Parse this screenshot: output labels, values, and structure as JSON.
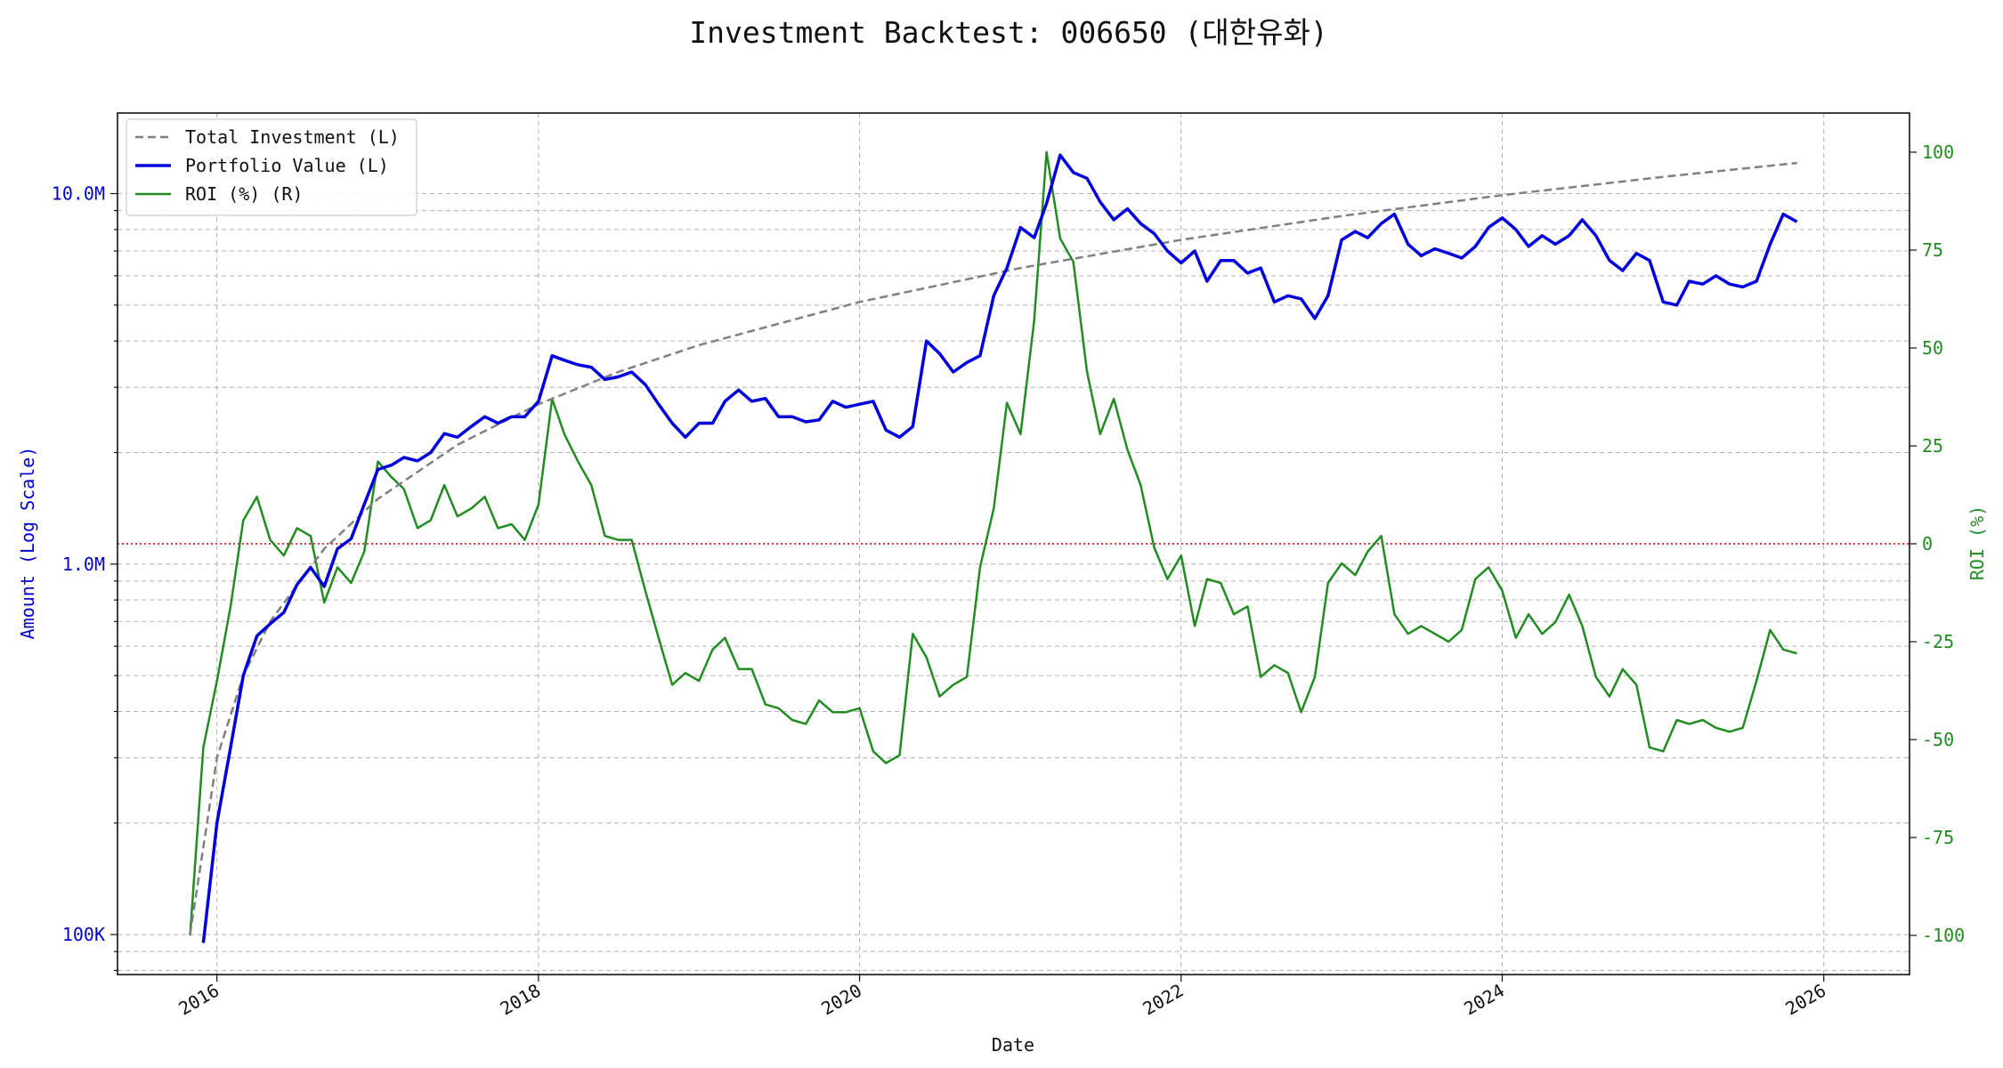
{
  "chart_data": {
    "type": "line",
    "title": "Investment Backtest: 006650 (대한유화)",
    "xlabel": "Date",
    "ylabel_left": "Amount (Log Scale)",
    "ylabel_right": "ROI (%)",
    "left_axis": {
      "scale": "log",
      "ylim": [
        78000,
        16500000
      ],
      "ticks": [
        {
          "value": 100000,
          "label": "100K"
        },
        {
          "value": 1000000,
          "label": "1.0M"
        },
        {
          "value": 10000000,
          "label": "10.0M"
        }
      ]
    },
    "right_axis": {
      "scale": "linear",
      "ylim": [
        -110,
        110
      ],
      "ticks": [
        -100,
        -75,
        -50,
        -25,
        0,
        25,
        50,
        75,
        100
      ]
    },
    "x_axis": {
      "range": [
        "2015-05-20",
        "2026-07-15"
      ],
      "ticks": [
        {
          "date": "2016-01-01",
          "label": "2016"
        },
        {
          "date": "2018-01-01",
          "label": "2018"
        },
        {
          "date": "2020-01-01",
          "label": "2020"
        },
        {
          "date": "2022-01-01",
          "label": "2022"
        },
        {
          "date": "2024-01-01",
          "label": "2024"
        },
        {
          "date": "2026-01-01",
          "label": "2026"
        }
      ]
    },
    "grid": true,
    "legend_position": "top-left",
    "reference_line": {
      "axis": "right",
      "value": 0,
      "color": "#cc0000",
      "style": "dotted"
    },
    "series": [
      {
        "name": "Total Investment (L)",
        "axis": "left",
        "color": "#808080",
        "style": "dashed",
        "stroke_width": 2.5,
        "x": [
          "2015-11-01",
          "2016-01-01",
          "2016-03-01",
          "2016-05-01",
          "2016-09-01",
          "2017-01-01",
          "2017-07-01",
          "2018-01-01",
          "2018-07-01",
          "2019-01-01",
          "2020-01-01",
          "2021-01-01",
          "2022-01-01",
          "2023-01-01",
          "2024-01-01",
          "2025-01-01",
          "2025-11-01"
        ],
        "values": [
          100000,
          300000,
          500000,
          700000,
          1100000,
          1500000,
          2100000,
          2700000,
          3300000,
          3900000,
          5100000,
          6300000,
          7500000,
          8700000,
          9900000,
          11100000,
          12100000
        ]
      },
      {
        "name": "Portfolio Value (L)",
        "axis": "left",
        "color": "#0000dd",
        "style": "solid",
        "stroke_width": 3.5,
        "x": [
          "2015-12-01",
          "2016-01-01",
          "2016-02-01",
          "2016-03-01",
          "2016-04-01",
          "2016-05-01",
          "2016-06-01",
          "2016-07-01",
          "2016-08-01",
          "2016-09-01",
          "2016-10-01",
          "2016-11-01",
          "2016-12-01",
          "2017-01-01",
          "2017-02-01",
          "2017-03-01",
          "2017-04-01",
          "2017-05-01",
          "2017-06-01",
          "2017-07-01",
          "2017-08-01",
          "2017-09-01",
          "2017-10-01",
          "2017-11-01",
          "2017-12-01",
          "2018-01-01",
          "2018-02-01",
          "2018-03-01",
          "2018-04-01",
          "2018-05-01",
          "2018-06-01",
          "2018-07-01",
          "2018-08-01",
          "2018-09-01",
          "2018-10-01",
          "2018-11-01",
          "2018-12-01",
          "2019-01-01",
          "2019-02-01",
          "2019-03-01",
          "2019-04-01",
          "2019-05-01",
          "2019-06-01",
          "2019-07-01",
          "2019-08-01",
          "2019-09-01",
          "2019-10-01",
          "2019-11-01",
          "2019-12-01",
          "2020-01-01",
          "2020-02-01",
          "2020-03-01",
          "2020-04-01",
          "2020-05-01",
          "2020-06-01",
          "2020-07-01",
          "2020-08-01",
          "2020-09-01",
          "2020-10-01",
          "2020-11-01",
          "2020-12-01",
          "2021-01-01",
          "2021-02-01",
          "2021-03-01",
          "2021-04-01",
          "2021-05-01",
          "2021-06-01",
          "2021-07-01",
          "2021-08-01",
          "2021-09-01",
          "2021-10-01",
          "2021-11-01",
          "2021-12-01",
          "2022-01-01",
          "2022-02-01",
          "2022-03-01",
          "2022-04-01",
          "2022-05-01",
          "2022-06-01",
          "2022-07-01",
          "2022-08-01",
          "2022-09-01",
          "2022-10-01",
          "2022-11-01",
          "2022-12-01",
          "2023-01-01",
          "2023-02-01",
          "2023-03-01",
          "2023-04-01",
          "2023-05-01",
          "2023-06-01",
          "2023-07-01",
          "2023-08-01",
          "2023-09-01",
          "2023-10-01",
          "2023-11-01",
          "2023-12-01",
          "2024-01-01",
          "2024-02-01",
          "2024-03-01",
          "2024-04-01",
          "2024-05-01",
          "2024-06-01",
          "2024-07-01",
          "2024-08-01",
          "2024-09-01",
          "2024-10-01",
          "2024-11-01",
          "2024-12-01",
          "2025-01-01",
          "2025-02-01",
          "2025-03-01",
          "2025-04-01",
          "2025-05-01",
          "2025-06-01",
          "2025-07-01",
          "2025-08-01",
          "2025-09-01",
          "2025-10-01",
          "2025-11-01"
        ],
        "values": [
          95000,
          200000,
          320000,
          500000,
          640000,
          690000,
          740000,
          880000,
          980000,
          870000,
          1100000,
          1170000,
          1450000,
          1800000,
          1850000,
          1940000,
          1900000,
          2000000,
          2250000,
          2200000,
          2350000,
          2500000,
          2400000,
          2500000,
          2500000,
          2750000,
          3650000,
          3550000,
          3450000,
          3400000,
          3150000,
          3200000,
          3300000,
          3050000,
          2700000,
          2400000,
          2200000,
          2400000,
          2400000,
          2750000,
          2950000,
          2750000,
          2800000,
          2500000,
          2500000,
          2420000,
          2450000,
          2750000,
          2650000,
          2700000,
          2750000,
          2300000,
          2200000,
          2350000,
          4000000,
          3700000,
          3300000,
          3500000,
          3650000,
          5300000,
          6300000,
          8100000,
          7600000,
          9400000,
          12700000,
          11400000,
          11000000,
          9500000,
          8500000,
          9100000,
          8300000,
          7800000,
          7000000,
          6500000,
          7000000,
          5800000,
          6600000,
          6600000,
          6100000,
          6300000,
          5100000,
          5300000,
          5200000,
          4600000,
          5300000,
          7500000,
          7900000,
          7600000,
          8300000,
          8800000,
          7300000,
          6800000,
          7100000,
          6900000,
          6700000,
          7200000,
          8100000,
          8600000,
          8000000,
          7200000,
          7700000,
          7300000,
          7700000,
          8500000,
          7700000,
          6600000,
          6200000,
          6900000,
          6600000,
          5100000,
          5000000,
          5800000,
          5700000,
          6000000,
          5700000,
          5600000,
          5800000,
          7300000,
          8800000,
          8400000
        ]
      },
      {
        "name": "ROI (%) (R)",
        "axis": "right",
        "color": "#228B22",
        "style": "solid",
        "stroke_width": 2.5,
        "x": [
          "2015-11-01",
          "2015-12-01",
          "2016-01-01",
          "2016-02-01",
          "2016-03-01",
          "2016-04-01",
          "2016-05-01",
          "2016-06-01",
          "2016-07-01",
          "2016-08-01",
          "2016-09-01",
          "2016-10-01",
          "2016-11-01",
          "2016-12-01",
          "2017-01-01",
          "2017-02-01",
          "2017-03-01",
          "2017-04-01",
          "2017-05-01",
          "2017-06-01",
          "2017-07-01",
          "2017-08-01",
          "2017-09-01",
          "2017-10-01",
          "2017-11-01",
          "2017-12-01",
          "2018-01-01",
          "2018-02-01",
          "2018-03-01",
          "2018-04-01",
          "2018-05-01",
          "2018-06-01",
          "2018-07-01",
          "2018-08-01",
          "2018-09-01",
          "2018-10-01",
          "2018-11-01",
          "2018-12-01",
          "2019-01-01",
          "2019-02-01",
          "2019-03-01",
          "2019-04-01",
          "2019-05-01",
          "2019-06-01",
          "2019-07-01",
          "2019-08-01",
          "2019-09-01",
          "2019-10-01",
          "2019-11-01",
          "2019-12-01",
          "2020-01-01",
          "2020-02-01",
          "2020-03-01",
          "2020-04-01",
          "2020-05-01",
          "2020-06-01",
          "2020-07-01",
          "2020-08-01",
          "2020-09-01",
          "2020-10-01",
          "2020-11-01",
          "2020-12-01",
          "2021-01-01",
          "2021-02-01",
          "2021-03-01",
          "2021-04-01",
          "2021-05-01",
          "2021-06-01",
          "2021-07-01",
          "2021-08-01",
          "2021-09-01",
          "2021-10-01",
          "2021-11-01",
          "2021-12-01",
          "2022-01-01",
          "2022-02-01",
          "2022-03-01",
          "2022-04-01",
          "2022-05-01",
          "2022-06-01",
          "2022-07-01",
          "2022-08-01",
          "2022-09-01",
          "2022-10-01",
          "2022-11-01",
          "2022-12-01",
          "2023-01-01",
          "2023-02-01",
          "2023-03-01",
          "2023-04-01",
          "2023-05-01",
          "2023-06-01",
          "2023-07-01",
          "2023-08-01",
          "2023-09-01",
          "2023-10-01",
          "2023-11-01",
          "2023-12-01",
          "2024-01-01",
          "2024-02-01",
          "2024-03-01",
          "2024-04-01",
          "2024-05-01",
          "2024-06-01",
          "2024-07-01",
          "2024-08-01",
          "2024-09-01",
          "2024-10-01",
          "2024-11-01",
          "2024-12-01",
          "2025-01-01",
          "2025-02-01",
          "2025-03-01",
          "2025-04-01",
          "2025-05-01",
          "2025-06-01",
          "2025-07-01",
          "2025-08-01",
          "2025-09-01",
          "2025-10-01",
          "2025-11-01"
        ],
        "values": [
          -100,
          -52,
          -35,
          -16,
          6,
          12,
          1,
          -3,
          4,
          2,
          -15,
          -6,
          -10,
          -2,
          21,
          17,
          14,
          4,
          6,
          15,
          7,
          9,
          12,
          4,
          5,
          1,
          10,
          37,
          28,
          21,
          15,
          2,
          1,
          1,
          -12,
          -24,
          -36,
          -33,
          -35,
          -27,
          -24,
          -32,
          -32,
          -41,
          -42,
          -45,
          -46,
          -40,
          -43,
          -43,
          -42,
          -53,
          -56,
          -54,
          -23,
          -29,
          -39,
          -36,
          -34,
          -6,
          9,
          36,
          28,
          57,
          100,
          78,
          72,
          44,
          28,
          37,
          24,
          15,
          -1,
          -9,
          -3,
          -21,
          -9,
          -10,
          -18,
          -16,
          -34,
          -31,
          -33,
          -43,
          -34,
          -10,
          -5,
          -8,
          -2,
          2,
          -18,
          -23,
          -21,
          -23,
          -25,
          -22,
          -9,
          -6,
          -12,
          -24,
          -18,
          -23,
          -20,
          -13,
          -21,
          -34,
          -39,
          -32,
          -36,
          -52,
          -53,
          -45,
          -46,
          -45,
          -47,
          -48,
          -47,
          -35,
          -22,
          -27,
          -28
        ]
      }
    ]
  }
}
